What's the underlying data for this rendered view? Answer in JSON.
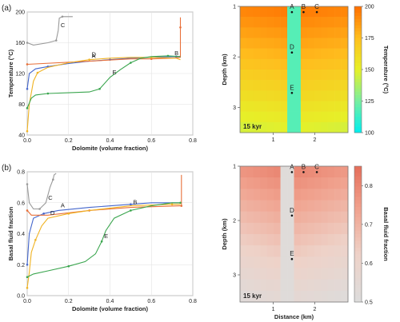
{
  "panels": [
    {
      "label": "(a)"
    },
    {
      "label": "(b)"
    }
  ],
  "chart_data": [
    {
      "type": "line",
      "panel": "(a)",
      "xlabel": "Dolomite (volume fraction)",
      "ylabel": "Temperature (°C)",
      "xlim": [
        0,
        0.8
      ],
      "ylim": [
        40,
        200
      ],
      "xticks": [
        "0.0",
        "0.2",
        "0.4",
        "0.6",
        "0.8"
      ],
      "yticks": [
        "40",
        "80",
        "120",
        "160",
        "200"
      ],
      "grid": true,
      "series": [
        {
          "name": "A",
          "color": "#4466cc",
          "points": [
            [
              0.0,
              100
            ],
            [
              0.01,
              120
            ],
            [
              0.04,
              126
            ],
            [
              0.1,
              129
            ],
            [
              0.2,
              133
            ],
            [
              0.3,
              136
            ],
            [
              0.4,
              138
            ],
            [
              0.5,
              140
            ],
            [
              0.6,
              141
            ],
            [
              0.72,
              142
            ],
            [
              0.74,
              142
            ]
          ]
        },
        {
          "name": "B",
          "color": "#e8703a",
          "points": [
            [
              0.0,
              132
            ],
            [
              0.3,
              136
            ],
            [
              0.5,
              139
            ],
            [
              0.6,
              139
            ],
            [
              0.7,
              140
            ],
            [
              0.74,
              141
            ],
            [
              0.74,
              180
            ],
            [
              0.74,
              193
            ]
          ]
        },
        {
          "name": "C",
          "color": "#999999",
          "points": [
            [
              0.0,
              160
            ],
            [
              0.03,
              157
            ],
            [
              0.1,
              160
            ],
            [
              0.14,
              163
            ],
            [
              0.15,
              176
            ],
            [
              0.155,
              192
            ],
            [
              0.17,
              194
            ],
            [
              0.2,
              194
            ],
            [
              0.22,
              194
            ]
          ]
        },
        {
          "name": "D",
          "color": "#f0b323",
          "points": [
            [
              0.0,
              45
            ],
            [
              0.01,
              80
            ],
            [
              0.03,
              110
            ],
            [
              0.05,
              121
            ],
            [
              0.1,
              128
            ],
            [
              0.2,
              134
            ],
            [
              0.3,
              138
            ],
            [
              0.4,
              140
            ],
            [
              0.5,
              141
            ],
            [
              0.6,
              141
            ],
            [
              0.72,
              140
            ],
            [
              0.74,
              138
            ]
          ]
        },
        {
          "name": "E",
          "color": "#3aa54e",
          "points": [
            [
              0.0,
              75
            ],
            [
              0.02,
              88
            ],
            [
              0.04,
              92
            ],
            [
              0.1,
              94
            ],
            [
              0.2,
              95
            ],
            [
              0.3,
              96
            ],
            [
              0.35,
              100
            ],
            [
              0.4,
              115
            ],
            [
              0.45,
              125
            ],
            [
              0.5,
              134
            ],
            [
              0.55,
              140
            ],
            [
              0.6,
              142
            ],
            [
              0.68,
              143
            ],
            [
              0.74,
              142
            ]
          ]
        }
      ]
    },
    {
      "type": "heatmap",
      "panel": "(a)",
      "xlabel": "",
      "ylabel": "Depth (km)",
      "xticks": [
        "1",
        "2"
      ],
      "yticks": [
        "1",
        "2",
        "3"
      ],
      "colorbar_label": "Temperature (°C)",
      "colorbar_ticks": [
        "100",
        "125",
        "150",
        "175",
        "200"
      ],
      "colorbar_range": [
        100,
        200
      ],
      "annotation": "15 kyr",
      "points": [
        {
          "label": "A",
          "x": 1.45,
          "depth": 1.05
        },
        {
          "label": "B",
          "x": 1.73,
          "depth": 1.05
        },
        {
          "label": "C",
          "x": 2.05,
          "depth": 1.05
        },
        {
          "label": "D",
          "x": 1.45,
          "depth": 1.85
        },
        {
          "label": "E",
          "x": 1.45,
          "depth": 2.65
        }
      ]
    },
    {
      "type": "line",
      "panel": "(b)",
      "xlabel": "Dolomite (volume fraction)",
      "ylabel": "Basal fluid fraction",
      "xlim": [
        0,
        0.8
      ],
      "ylim": [
        0,
        0.8
      ],
      "xticks": [
        "0.0",
        "0.2",
        "0.4",
        "0.6",
        "0.8"
      ],
      "yticks": [
        "0.0",
        "0.2",
        "0.4",
        "0.6",
        "0.8"
      ],
      "grid": true,
      "series": [
        {
          "name": "A",
          "color": "#4466cc",
          "points": [
            [
              0.0,
              0.2
            ],
            [
              0.01,
              0.4
            ],
            [
              0.03,
              0.5
            ],
            [
              0.08,
              0.53
            ],
            [
              0.15,
              0.55
            ],
            [
              0.3,
              0.57
            ],
            [
              0.5,
              0.59
            ],
            [
              0.6,
              0.6
            ],
            [
              0.74,
              0.6
            ]
          ]
        },
        {
          "name": "B",
          "color": "#e8703a",
          "points": [
            [
              0.0,
              0.55
            ],
            [
              0.02,
              0.52
            ],
            [
              0.1,
              0.52
            ],
            [
              0.3,
              0.55
            ],
            [
              0.5,
              0.57
            ],
            [
              0.74,
              0.58
            ],
            [
              0.745,
              0.58
            ],
            [
              0.745,
              0.78
            ]
          ]
        },
        {
          "name": "C",
          "color": "#999999",
          "points": [
            [
              0.0,
              0.72
            ],
            [
              0.01,
              0.6
            ],
            [
              0.03,
              0.56
            ],
            [
              0.06,
              0.56
            ],
            [
              0.09,
              0.6
            ],
            [
              0.11,
              0.7
            ],
            [
              0.125,
              0.75
            ],
            [
              0.13,
              0.78
            ],
            [
              0.14,
              0.79
            ]
          ]
        },
        {
          "name": "D",
          "color": "#f0b323",
          "points": [
            [
              0.0,
              0.05
            ],
            [
              0.01,
              0.15
            ],
            [
              0.02,
              0.28
            ],
            [
              0.04,
              0.36
            ],
            [
              0.07,
              0.45
            ],
            [
              0.1,
              0.5
            ],
            [
              0.2,
              0.53
            ],
            [
              0.3,
              0.55
            ],
            [
              0.5,
              0.58
            ],
            [
              0.7,
              0.59
            ],
            [
              0.74,
              0.59
            ]
          ]
        },
        {
          "name": "E",
          "color": "#3aa54e",
          "points": [
            [
              0.0,
              0.12
            ],
            [
              0.03,
              0.14
            ],
            [
              0.1,
              0.16
            ],
            [
              0.2,
              0.19
            ],
            [
              0.28,
              0.22
            ],
            [
              0.33,
              0.27
            ],
            [
              0.36,
              0.35
            ],
            [
              0.38,
              0.42
            ],
            [
              0.42,
              0.5
            ],
            [
              0.5,
              0.55
            ],
            [
              0.6,
              0.58
            ],
            [
              0.7,
              0.6
            ],
            [
              0.74,
              0.6
            ]
          ]
        }
      ]
    },
    {
      "type": "heatmap",
      "panel": "(b)",
      "xlabel": "Distance (km)",
      "ylabel": "Depth (km)",
      "xticks": [
        "1",
        "2"
      ],
      "yticks": [
        "1",
        "2",
        "3"
      ],
      "colorbar_label": "Basal fluid fraction",
      "colorbar_ticks": [
        "0.5",
        "0.6",
        "0.7",
        "0.8"
      ],
      "colorbar_range": [
        0.5,
        0.85
      ],
      "annotation": "15 kyr",
      "points": [
        {
          "label": "A",
          "x": 1.45,
          "depth": 1.05
        },
        {
          "label": "B",
          "x": 1.73,
          "depth": 1.05
        },
        {
          "label": "C",
          "x": 2.05,
          "depth": 1.05
        },
        {
          "label": "D",
          "x": 1.45,
          "depth": 1.85
        },
        {
          "label": "E",
          "x": 1.45,
          "depth": 2.65
        }
      ]
    }
  ]
}
